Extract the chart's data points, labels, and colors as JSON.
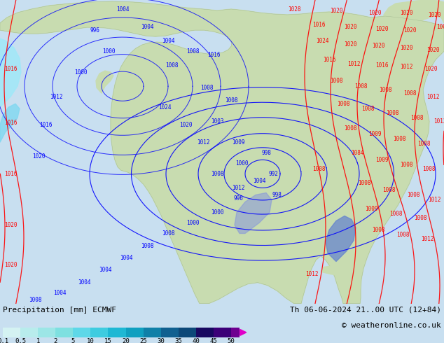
{
  "title_left": "Precipitation [mm] ECMWF",
  "title_right": "Th 06-06-2024 21..00 UTC (12+84)",
  "copyright": "© weatheronline.co.uk",
  "colorbar_labels": [
    "0.1",
    "0.5",
    "1",
    "2",
    "5",
    "10",
    "15",
    "20",
    "25",
    "30",
    "35",
    "40",
    "45",
    "50"
  ],
  "colorbar_colors_hex": [
    "#d4f2f2",
    "#b8ecec",
    "#9ce6e6",
    "#7ee0e0",
    "#5ed8e8",
    "#3ecce0",
    "#1eb8d4",
    "#10a0c0",
    "#1080a8",
    "#106090",
    "#0c4878",
    "#180860",
    "#3c0078",
    "#6e0090",
    "#9c00a0",
    "#c000b0",
    "#e000c8",
    "#f800d8",
    "#ff00e8"
  ],
  "map_ocean_color": "#c8dff0",
  "map_land_color": "#c8dcb0",
  "figure_width": 6.34,
  "figure_height": 4.9,
  "dpi": 100
}
